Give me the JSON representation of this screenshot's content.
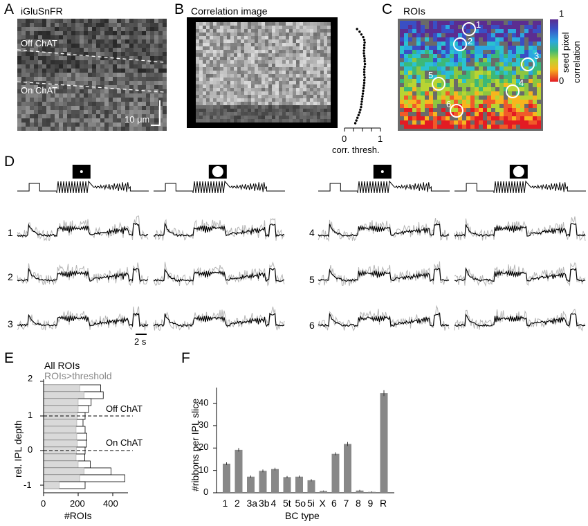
{
  "panels": {
    "A": {
      "letter": "A",
      "title": "iGluSnFR",
      "layer_off": "Off ChAT",
      "layer_on": "On ChAT",
      "scalebar": "10 μm"
    },
    "B": {
      "letter": "B",
      "title": "Correlation image",
      "xlabel": "corr. thresh.",
      "ticks": [
        "0",
        "1"
      ]
    },
    "C": {
      "letter": "C",
      "title": "ROIs",
      "roi_labels": [
        "1",
        "2",
        "3",
        "4",
        "5",
        "6"
      ],
      "colorbar": {
        "label_line1": "seed pixel",
        "label_line2": "correlation",
        "max": "1",
        "min": "0"
      }
    },
    "D": {
      "letter": "D",
      "scalebar": "2 s",
      "row_labels_left": [
        "1",
        "2",
        "3"
      ],
      "row_labels_right": [
        "4",
        "5",
        "6"
      ]
    },
    "E": {
      "letter": "E",
      "legend_all": "All ROIs",
      "legend_thresh": "ROIs>threshold",
      "xlabel": "#ROIs",
      "ylabel": "rel. IPL depth",
      "xticks": [
        "0",
        "200",
        "400"
      ],
      "yticks": [
        "2",
        "1",
        "0",
        "-1"
      ],
      "line_off": "Off ChAT",
      "line_on": "On ChAT"
    },
    "F": {
      "letter": "F",
      "xlabel": "BC type",
      "ylabel": "#ribbons per IPL slice",
      "yticks": [
        "0",
        "10",
        "20",
        "30",
        "40"
      ]
    }
  },
  "chart_data": [
    {
      "id": "E",
      "type": "bar",
      "orientation": "horizontal",
      "xlabel": "#ROIs",
      "ylabel": "rel. IPL depth",
      "xlim": [
        0,
        500
      ],
      "ylim": [
        -1.2,
        2
      ],
      "depth_bins": [
        1.8,
        1.6,
        1.4,
        1.2,
        1.0,
        0.8,
        0.6,
        0.4,
        0.2,
        0.0,
        -0.2,
        -0.4,
        -0.6,
        -0.8,
        -1.0,
        -1.2
      ],
      "series": [
        {
          "name": "All ROIs",
          "values": [
            330,
            345,
            275,
            260,
            240,
            228,
            240,
            250,
            248,
            240,
            238,
            270,
            390,
            470,
            240,
            0
          ],
          "color": "#ffffff"
        },
        {
          "name": "ROIs>threshold",
          "values": [
            210,
            235,
            200,
            200,
            195,
            192,
            188,
            192,
            195,
            190,
            188,
            200,
            235,
            210,
            90,
            0
          ],
          "color": "#d9d9d9"
        }
      ],
      "ref_lines": [
        {
          "y": 1,
          "label": "Off ChAT"
        },
        {
          "y": 0,
          "label": "On ChAT"
        }
      ]
    },
    {
      "id": "F",
      "type": "bar",
      "xlabel": "BC type",
      "ylabel": "#ribbons per IPL slice",
      "ylim": [
        0,
        47
      ],
      "categories": [
        "1",
        "2",
        "3a",
        "3b",
        "4",
        "5t",
        "5o",
        "5i",
        "X",
        "6",
        "7",
        "8",
        "9",
        "R"
      ],
      "values": [
        13,
        19.2,
        7.2,
        9.8,
        10.6,
        7.0,
        7.2,
        5.6,
        0.8,
        17.4,
        21.8,
        1.0,
        0.4,
        44.5
      ],
      "errors": [
        0.6,
        0.8,
        0.5,
        0.6,
        0.6,
        0.5,
        0.5,
        0.5,
        0.2,
        0.7,
        0.9,
        0.3,
        0.2,
        1.3
      ],
      "color": "#888888"
    },
    {
      "id": "B-profile",
      "type": "scatter",
      "xlabel": "corr. thresh.",
      "xlim": [
        0,
        1
      ],
      "x": [
        0.35,
        0.42,
        0.47,
        0.52,
        0.55,
        0.56,
        0.55,
        0.55,
        0.54,
        0.54,
        0.55,
        0.56,
        0.56,
        0.57,
        0.56,
        0.55,
        0.55,
        0.55,
        0.56,
        0.55,
        0.55,
        0.54,
        0.53,
        0.52,
        0.51,
        0.5,
        0.49,
        0.48,
        0.47,
        0.46,
        0.44,
        0.42,
        0.39,
        0.36,
        0.33,
        0.3
      ]
    }
  ]
}
